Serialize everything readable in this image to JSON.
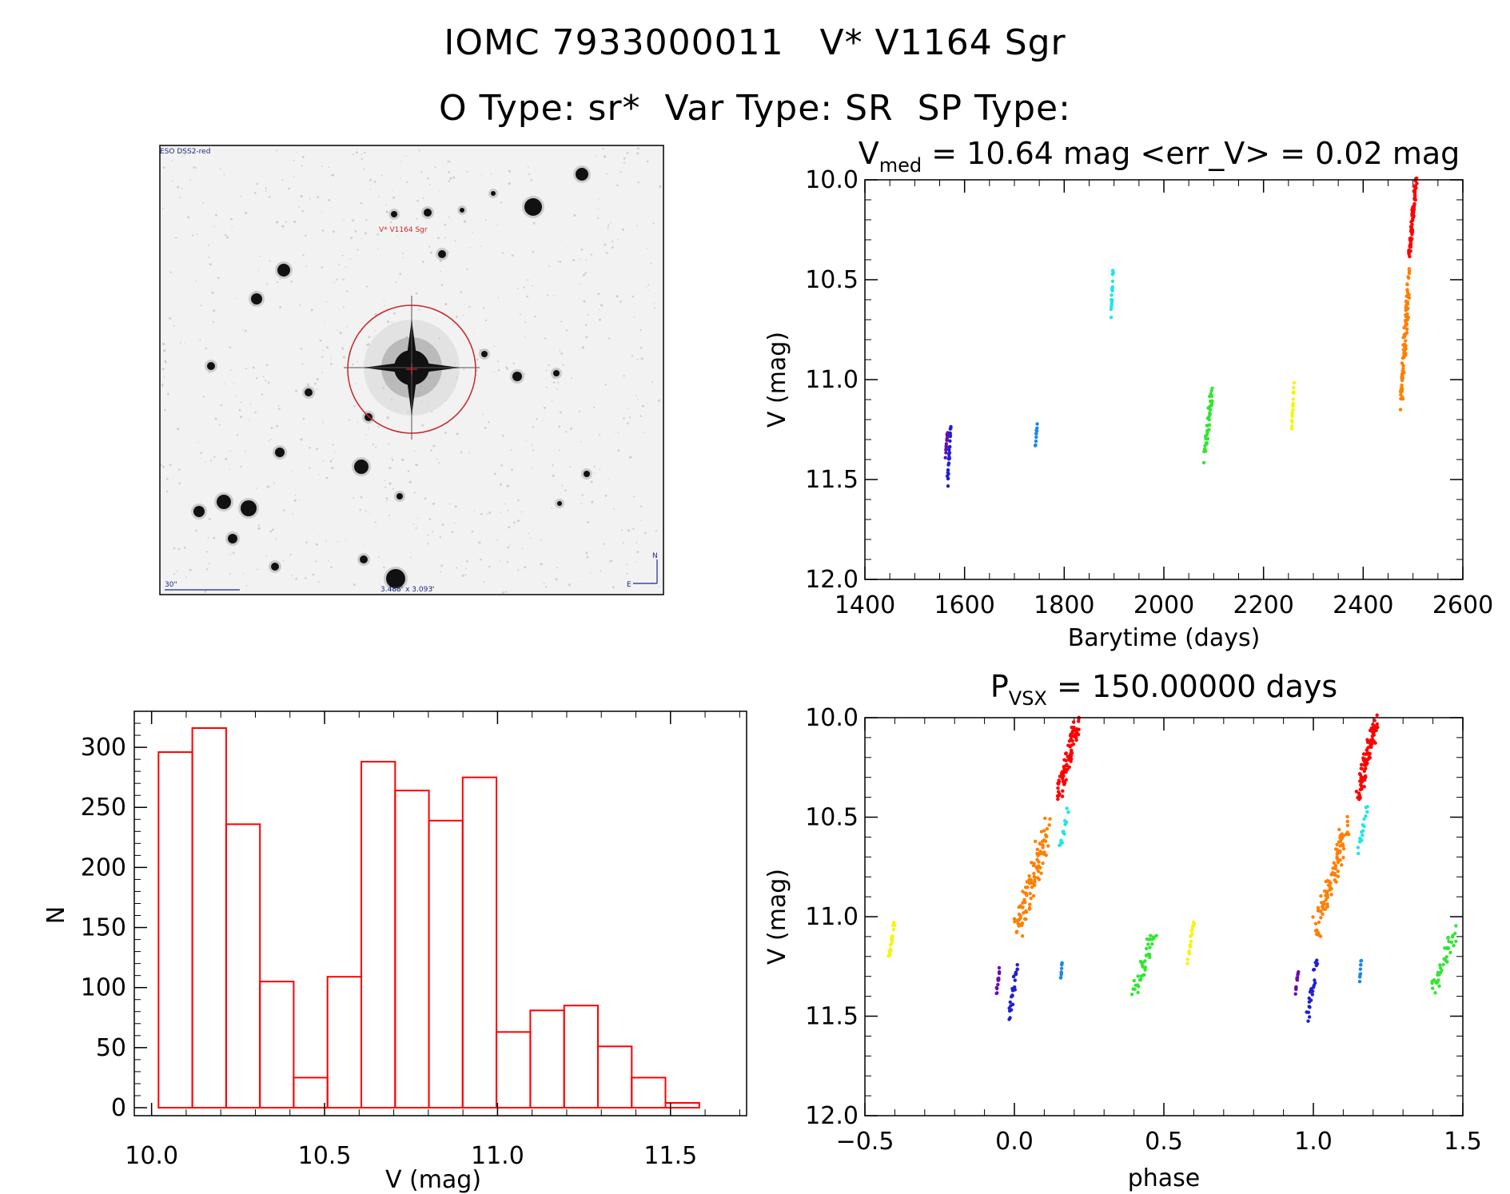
{
  "header": {
    "line1": "IOMC 7933000011   V* V1164 Sgr",
    "line2": "O Type: sr*  Var Type: SR  SP Type:"
  },
  "finder": {
    "survey_label": "ESO DSS2-red",
    "target_label": "V* V1164 Sgr",
    "scale_label": "30\"",
    "fov_label": "3.488' x 3.093'",
    "north_label": "N",
    "east_label": "E"
  },
  "chart_data": [
    {
      "id": "lightcurve",
      "type": "scatter",
      "title_prefix": "V",
      "title_sub": "med",
      "title_rest": " = 10.64 mag <err_V> = 0.02 mag",
      "xlabel": "Barytime (days)",
      "ylabel": "V (mag)",
      "xlim": [
        1400,
        2600
      ],
      "ylim": [
        12.0,
        10.0
      ],
      "y_inverted": true,
      "xticks": [
        1400,
        1600,
        1800,
        2000,
        2200,
        2400,
        2600
      ],
      "yticks": [
        "10.0",
        "10.5",
        "11.0",
        "11.5",
        "12.0"
      ],
      "series": [
        {
          "color": "#6a0dad",
          "x_range": [
            1562,
            1566
          ],
          "y_range": [
            11.26,
            11.38
          ],
          "n": 14
        },
        {
          "color": "#1f1fd6",
          "x_range": [
            1566,
            1572
          ],
          "y_range": [
            11.23,
            11.52
          ],
          "n": 26
        },
        {
          "color": "#1e88e5",
          "x_range": [
            1742,
            1746
          ],
          "y_range": [
            11.22,
            11.33
          ],
          "n": 10
        },
        {
          "color": "#1ee6e6",
          "x_range": [
            1894,
            1898
          ],
          "y_range": [
            10.46,
            10.67
          ],
          "n": 18
        },
        {
          "color": "#32e632",
          "x_range": [
            2082,
            2096
          ],
          "y_range": [
            11.06,
            11.38
          ],
          "n": 40
        },
        {
          "color": "#f5f50a",
          "x_range": [
            2257,
            2261
          ],
          "y_range": [
            11.03,
            11.23
          ],
          "n": 18
        },
        {
          "color": "#ff7f00",
          "x_range": [
            2476,
            2492
          ],
          "y_range": [
            10.5,
            11.09
          ],
          "n": 90
        },
        {
          "color": "#ff0000",
          "x_range": [
            2492,
            2506
          ],
          "y_range": [
            10.02,
            10.38
          ],
          "n": 80
        }
      ]
    },
    {
      "id": "phased",
      "type": "scatter",
      "title_prefix": "P",
      "title_sub": "VSX",
      "title_rest": " = 150.00000 days",
      "xlabel": "phase",
      "ylabel": "V (mag)",
      "xlim": [
        -0.5,
        1.5
      ],
      "ylim": [
        12.0,
        10.0
      ],
      "y_inverted": true,
      "xticks": [
        "−0.5",
        "0.0",
        "0.5",
        "1.0",
        "1.5"
      ],
      "yticks": [
        "10.0",
        "10.5",
        "11.0",
        "11.5",
        "12.0"
      ],
      "series": [
        {
          "color": "#6a0dad",
          "x_range": [
            -0.06,
            -0.05
          ],
          "y_range": [
            11.27,
            11.38
          ],
          "n": 12
        },
        {
          "color": "#1f1fd6",
          "x_range": [
            -0.02,
            0.01
          ],
          "y_range": [
            11.24,
            11.51
          ],
          "n": 24
        },
        {
          "color": "#1e88e5",
          "x_range": [
            0.155,
            0.16
          ],
          "y_range": [
            11.22,
            11.32
          ],
          "n": 10
        },
        {
          "color": "#1ee6e6",
          "x_range": [
            0.15,
            0.18
          ],
          "y_range": [
            10.46,
            10.66
          ],
          "n": 16
        },
        {
          "color": "#32e632",
          "x_range": [
            0.4,
            0.47
          ],
          "y_range": [
            11.08,
            11.37
          ],
          "n": 40
        },
        {
          "color": "#f5f50a",
          "x_range": [
            -0.42,
            -0.4
          ],
          "y_range": [
            11.03,
            11.22
          ],
          "n": 16
        },
        {
          "color": "#f5f50a",
          "x_range": [
            0.58,
            0.6
          ],
          "y_range": [
            11.03,
            11.22
          ],
          "n": 16
        },
        {
          "color": "#ff7f00",
          "x_range": [
            0.01,
            0.11
          ],
          "y_range": [
            10.55,
            11.06
          ],
          "n": 100
        },
        {
          "color": "#ff0000",
          "x_range": [
            0.15,
            0.21
          ],
          "y_range": [
            10.02,
            10.38
          ],
          "n": 90
        },
        {
          "color": "#6a0dad",
          "x_range": [
            0.94,
            0.95
          ],
          "y_range": [
            11.27,
            11.38
          ],
          "n": 12
        },
        {
          "color": "#1f1fd6",
          "x_range": [
            0.98,
            1.01
          ],
          "y_range": [
            11.24,
            11.51
          ],
          "n": 24
        },
        {
          "color": "#1e88e5",
          "x_range": [
            1.155,
            1.16
          ],
          "y_range": [
            11.22,
            11.32
          ],
          "n": 10
        },
        {
          "color": "#1ee6e6",
          "x_range": [
            1.15,
            1.18
          ],
          "y_range": [
            10.46,
            10.66
          ],
          "n": 16
        },
        {
          "color": "#32e632",
          "x_range": [
            1.4,
            1.47
          ],
          "y_range": [
            11.08,
            11.37
          ],
          "n": 40
        },
        {
          "color": "#ff7f00",
          "x_range": [
            1.01,
            1.11
          ],
          "y_range": [
            10.55,
            11.06
          ],
          "n": 100
        },
        {
          "color": "#ff0000",
          "x_range": [
            1.15,
            1.21
          ],
          "y_range": [
            10.02,
            10.38
          ],
          "n": 90
        }
      ]
    },
    {
      "id": "histogram",
      "type": "bar",
      "xlabel": "V (mag)",
      "ylabel": "N",
      "xlim": [
        9.95,
        11.72
      ],
      "ylim": [
        0,
        330
      ],
      "xticks": [
        "10.0",
        "10.5",
        "11.0",
        "11.5"
      ],
      "yticks": [
        "0",
        "50",
        "100",
        "150",
        "200",
        "250",
        "300"
      ],
      "bar_color": "#ff0000",
      "bin_start": 10.02,
      "bin_width": 0.0977,
      "values": [
        296,
        316,
        236,
        105,
        25,
        109,
        288,
        264,
        239,
        275,
        63,
        81,
        85,
        51,
        25,
        4
      ]
    }
  ]
}
